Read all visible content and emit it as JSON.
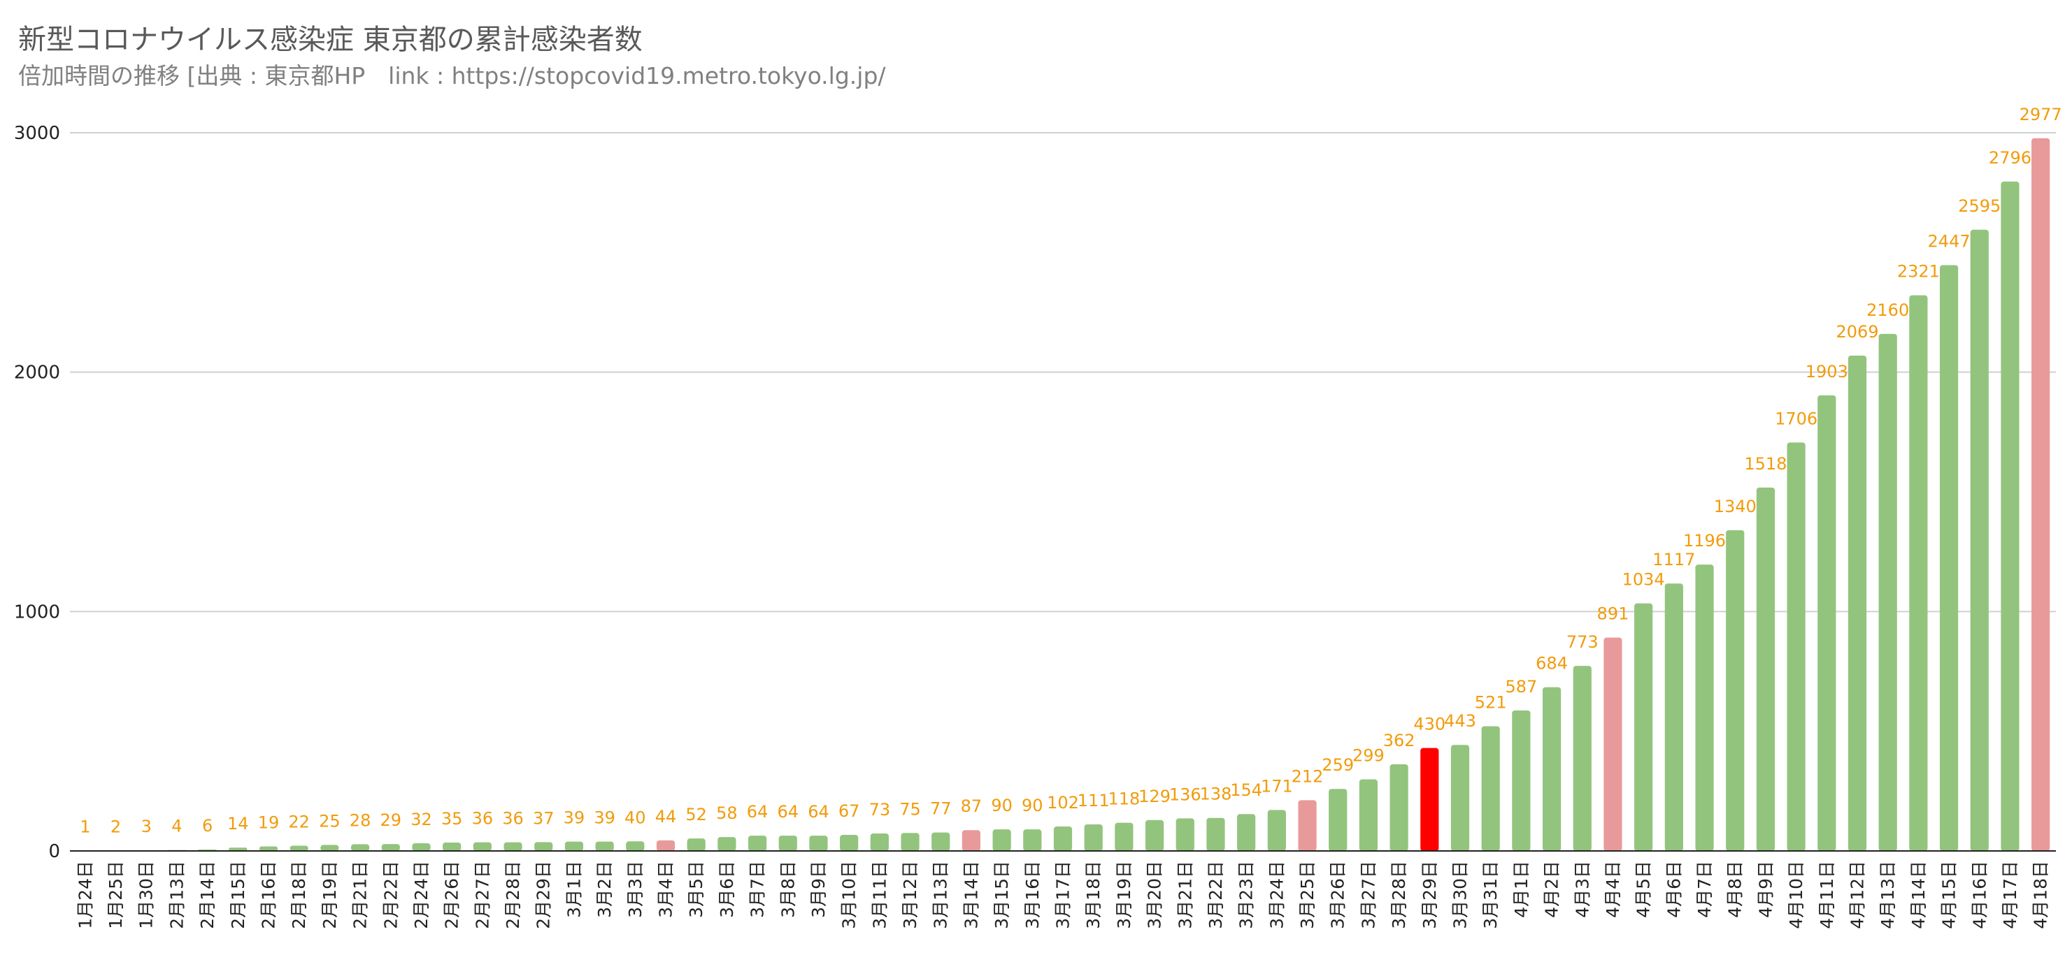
{
  "chart_data": {
    "type": "bar",
    "title": "新型コロナウイルス感染症 東京都の累計感染者数",
    "subtitle": "倍加時間の推移 [出典 : 東京都HP　link : https://stopcovid19.metro.tokyo.lg.jp/",
    "xlabel": "",
    "ylabel": "",
    "ylim": [
      0,
      3000
    ],
    "yticks": [
      0,
      1000,
      2000,
      3000
    ],
    "grid": true,
    "legend": "none",
    "colors": {
      "default": "#93C47D",
      "highlight_light": "#E89A9A",
      "highlight_strong": "#FF0000",
      "label": "#F29B0A",
      "grid": "#D0D0D0",
      "axis": "#222222"
    },
    "categories": [
      "1月24日",
      "1月25日",
      "1月30日",
      "2月13日",
      "2月14日",
      "2月15日",
      "2月16日",
      "2月18日",
      "2月19日",
      "2月21日",
      "2月22日",
      "2月24日",
      "2月26日",
      "2月27日",
      "2月28日",
      "2月29日",
      "3月1日",
      "3月2日",
      "3月3日",
      "3月4日",
      "3月5日",
      "3月6日",
      "3月7日",
      "3月8日",
      "3月9日",
      "3月10日",
      "3月11日",
      "3月12日",
      "3月13日",
      "3月14日",
      "3月15日",
      "3月16日",
      "3月17日",
      "3月18日",
      "3月19日",
      "3月20日",
      "3月21日",
      "3月22日",
      "3月23日",
      "3月24日",
      "3月25日",
      "3月26日",
      "3月27日",
      "3月28日",
      "3月29日",
      "3月30日",
      "3月31日",
      "4月1日",
      "4月2日",
      "4月3日",
      "4月4日",
      "4月5日",
      "4月6日",
      "4月7日",
      "4月8日",
      "4月9日",
      "4月10日",
      "4月11日",
      "4月12日",
      "4月13日",
      "4月14日",
      "4月15日",
      "4月16日",
      "4月17日",
      "4月18日"
    ],
    "values": [
      1,
      2,
      3,
      4,
      6,
      14,
      19,
      22,
      25,
      28,
      29,
      32,
      35,
      36,
      36,
      37,
      39,
      39,
      40,
      44,
      52,
      58,
      64,
      64,
      64,
      67,
      73,
      75,
      77,
      87,
      90,
      90,
      102,
      111,
      118,
      129,
      136,
      138,
      154,
      171,
      212,
      259,
      299,
      362,
      430,
      443,
      521,
      587,
      684,
      773,
      891,
      1034,
      1117,
      1196,
      1340,
      1518,
      1706,
      1903,
      2069,
      2160,
      2321,
      2447,
      2595,
      2796,
      2977
    ],
    "highlight_light": [
      "3月4日",
      "3月14日",
      "3月25日",
      "4月4日",
      "4月18日"
    ],
    "highlight_strong": [
      "3月29日"
    ]
  }
}
